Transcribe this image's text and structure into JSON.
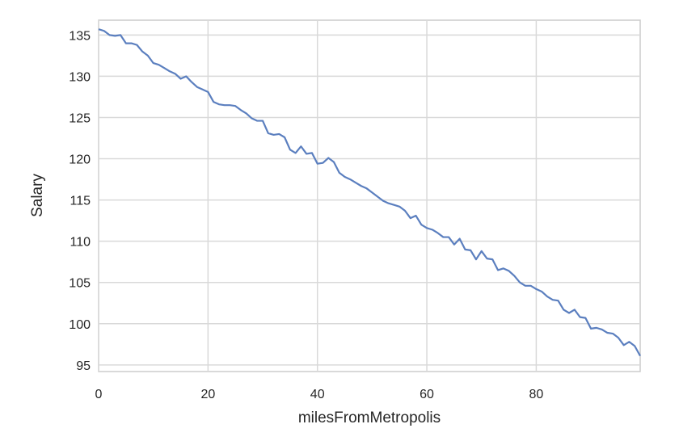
{
  "chart_data": {
    "type": "line",
    "xlabel": "milesFromMetropolis",
    "ylabel": "Salary",
    "xlim": [
      0,
      99
    ],
    "ylim": [
      94.2,
      136.8
    ],
    "grid": true,
    "x_ticks": [
      0,
      20,
      40,
      60,
      80
    ],
    "y_ticks": [
      95,
      100,
      105,
      110,
      115,
      120,
      125,
      130,
      135
    ],
    "line_color": "#5b7fbf",
    "series": [
      {
        "x": [
          0,
          1,
          2,
          3,
          4,
          5,
          6,
          7,
          8,
          9,
          10,
          11,
          12,
          13,
          14,
          15,
          16,
          17,
          18,
          19,
          20,
          21,
          22,
          23,
          24,
          25,
          26,
          27,
          28,
          29,
          30,
          31,
          32,
          33,
          34,
          35,
          36,
          37,
          38,
          39,
          40,
          41,
          42,
          43,
          44,
          45,
          46,
          47,
          48,
          49,
          50,
          51,
          52,
          53,
          54,
          55,
          56,
          57,
          58,
          59,
          60,
          61,
          62,
          63,
          64,
          65,
          66,
          67,
          68,
          69,
          70,
          71,
          72,
          73,
          74,
          75,
          76,
          77,
          78,
          79,
          80,
          81,
          82,
          83,
          84,
          85,
          86,
          87,
          88,
          89,
          90,
          91,
          92,
          93,
          94,
          95,
          96,
          97,
          98,
          99
        ],
        "values": [
          135.7,
          135.5,
          135.0,
          134.9,
          135.0,
          134.0,
          134.0,
          133.8,
          133.0,
          132.5,
          131.6,
          131.4,
          131.0,
          130.6,
          130.3,
          129.7,
          130.0,
          129.3,
          128.7,
          128.4,
          128.1,
          126.9,
          126.6,
          126.5,
          126.5,
          126.4,
          125.9,
          125.5,
          124.9,
          124.6,
          124.6,
          123.1,
          122.9,
          123.0,
          122.6,
          121.1,
          120.7,
          121.5,
          120.6,
          120.7,
          119.4,
          119.5,
          120.1,
          119.6,
          118.3,
          117.8,
          117.5,
          117.1,
          116.7,
          116.4,
          115.9,
          115.4,
          114.9,
          114.6,
          114.4,
          114.2,
          113.7,
          112.8,
          113.1,
          112.0,
          111.6,
          111.4,
          111.0,
          110.5,
          110.5,
          109.6,
          110.3,
          109.0,
          108.9,
          107.8,
          108.8,
          107.9,
          107.8,
          106.5,
          106.7,
          106.4,
          105.8,
          105.0,
          104.6,
          104.6,
          104.2,
          103.9,
          103.3,
          102.9,
          102.8,
          101.7,
          101.3,
          101.7,
          100.8,
          100.7,
          99.4,
          99.5,
          99.3,
          98.9,
          98.8,
          98.3,
          97.4,
          97.8,
          97.3,
          96.1
        ]
      }
    ]
  }
}
